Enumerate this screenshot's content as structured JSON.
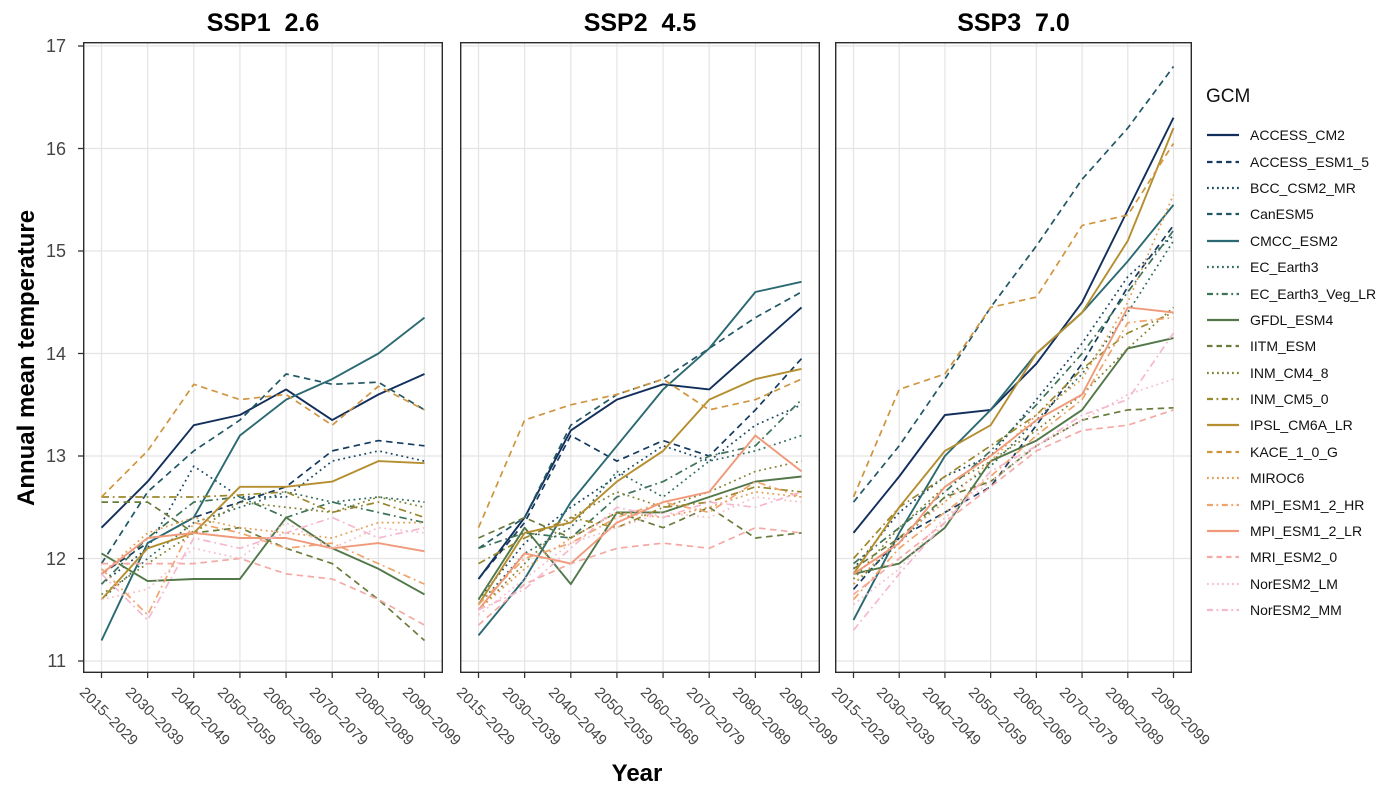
{
  "chart_data": {
    "type": "line",
    "faceted": true,
    "xlabel": "Year",
    "ylabel": "Annual mean temperature",
    "legend_title": "GCM",
    "ylim": [
      11,
      17
    ],
    "yticks": [
      11,
      12,
      13,
      14,
      15,
      16,
      17
    ],
    "grid": "major-only",
    "legend_position": "right",
    "x_categories": [
      "2015–2029",
      "2030–2039",
      "2040–2049",
      "2050–2059",
      "2060–2069",
      "2070–2079",
      "2080–2089",
      "2090–2099"
    ],
    "gcms": [
      {
        "name": "ACCESS_CM2",
        "color": "#122F5C",
        "linetype": "solid"
      },
      {
        "name": "ACCESS_ESM1_5",
        "color": "#153A60",
        "linetype": "dashed"
      },
      {
        "name": "BCC_CSM2_MR",
        "color": "#1A4764",
        "linetype": "dotted"
      },
      {
        "name": "CanESM5",
        "color": "#215765",
        "linetype": "dashed"
      },
      {
        "name": "CMCC_ESM2",
        "color": "#2B6A72",
        "linetype": "solid"
      },
      {
        "name": "EC_Earth3",
        "color": "#2F6B60",
        "linetype": "dotted"
      },
      {
        "name": "EC_Earth3_Veg_LR",
        "color": "#3D7358",
        "linetype": "dashdot"
      },
      {
        "name": "GFDL_ESM4",
        "color": "#527849",
        "linetype": "solid"
      },
      {
        "name": "IITM_ESM",
        "color": "#697C3B",
        "linetype": "dashed"
      },
      {
        "name": "INM_CM4_8",
        "color": "#828233",
        "linetype": "dotted"
      },
      {
        "name": "INM_CM5_0",
        "color": "#9B872C",
        "linetype": "dashdot"
      },
      {
        "name": "IPSL_CM6A_LR",
        "color": "#B48E2F",
        "linetype": "solid"
      },
      {
        "name": "KACE_1_0_G",
        "color": "#D0953F",
        "linetype": "dashed"
      },
      {
        "name": "MIROC6",
        "color": "#E49D52",
        "linetype": "dotted"
      },
      {
        "name": "MPI_ESM1_2_HR",
        "color": "#F0A46C",
        "linetype": "dashdot"
      },
      {
        "name": "MPI_ESM1_2_LR",
        "color": "#F09A7B",
        "linetype": "solid"
      },
      {
        "name": "MRI_ESM2_0",
        "color": "#F4A9A4",
        "linetype": "dashed"
      },
      {
        "name": "NorESM2_LM",
        "color": "#F8C0C8",
        "linetype": "dotted"
      },
      {
        "name": "NorESM2_MM",
        "color": "#F5B8CF",
        "linetype": "dashdot"
      }
    ],
    "panels": [
      {
        "title": "SSP1  2.6",
        "values": [
          [
            12.3,
            12.75,
            13.3,
            13.4,
            13.65,
            13.35,
            13.6,
            13.8
          ],
          [
            11.85,
            12.15,
            12.4,
            12.55,
            12.7,
            13.05,
            13.15,
            13.1
          ],
          [
            11.75,
            12.1,
            12.9,
            12.6,
            12.6,
            12.95,
            13.05,
            12.95
          ],
          [
            11.95,
            12.65,
            13.05,
            13.35,
            13.8,
            13.7,
            13.72,
            13.45
          ],
          [
            11.2,
            12.15,
            12.4,
            13.2,
            13.55,
            13.75,
            14.0,
            14.35
          ],
          [
            11.6,
            12.0,
            12.35,
            12.5,
            12.65,
            12.55,
            12.6,
            12.55
          ],
          [
            11.75,
            12.2,
            12.55,
            12.6,
            12.4,
            12.55,
            12.45,
            12.35
          ],
          [
            12.05,
            11.78,
            11.8,
            11.8,
            12.4,
            12.1,
            11.9,
            11.65
          ],
          [
            12.55,
            12.55,
            12.25,
            12.3,
            12.1,
            11.95,
            11.6,
            11.2
          ],
          [
            11.65,
            11.95,
            12.25,
            12.55,
            12.5,
            12.45,
            12.6,
            12.5
          ],
          [
            12.6,
            12.6,
            12.6,
            12.62,
            12.65,
            12.45,
            12.55,
            12.4
          ],
          [
            11.6,
            12.1,
            12.25,
            12.7,
            12.7,
            12.75,
            12.95,
            12.93
          ],
          [
            12.6,
            13.05,
            13.7,
            13.55,
            13.6,
            13.3,
            13.68,
            13.45
          ],
          [
            11.85,
            12.25,
            12.4,
            12.3,
            12.25,
            12.2,
            12.35,
            12.35
          ],
          [
            11.9,
            11.45,
            12.35,
            12.25,
            12.1,
            12.15,
            11.95,
            11.75
          ],
          [
            11.85,
            12.2,
            12.25,
            12.2,
            12.2,
            12.1,
            12.15,
            12.07
          ],
          [
            11.95,
            11.95,
            11.95,
            12.0,
            11.85,
            11.8,
            11.6,
            11.35
          ],
          [
            11.6,
            11.7,
            12.1,
            12.0,
            12.35,
            12.1,
            12.3,
            12.25
          ],
          [
            11.85,
            11.4,
            12.2,
            12.1,
            12.25,
            12.4,
            12.2,
            12.3
          ]
        ]
      },
      {
        "title": "SSP2  4.5",
        "values": [
          [
            11.8,
            12.4,
            13.25,
            13.55,
            13.7,
            13.65,
            14.05,
            14.45
          ],
          [
            11.8,
            12.35,
            13.2,
            12.95,
            13.15,
            13.0,
            13.45,
            13.95
          ],
          [
            11.6,
            12.15,
            12.5,
            12.8,
            13.1,
            12.95,
            13.3,
            13.5
          ],
          [
            12.1,
            12.4,
            13.3,
            13.6,
            13.75,
            14.05,
            14.35,
            14.6
          ],
          [
            11.25,
            11.8,
            12.55,
            13.1,
            13.65,
            14.05,
            14.6,
            14.7
          ],
          [
            11.55,
            12.05,
            12.3,
            12.85,
            12.6,
            12.95,
            13.05,
            13.2
          ],
          [
            12.1,
            12.25,
            12.2,
            12.6,
            12.75,
            13.0,
            13.1,
            13.55
          ],
          [
            11.6,
            12.3,
            11.75,
            12.45,
            12.45,
            12.6,
            12.75,
            12.8
          ],
          [
            12.2,
            12.4,
            12.2,
            12.45,
            12.3,
            12.5,
            12.2,
            12.25
          ],
          [
            11.5,
            11.95,
            12.4,
            12.65,
            12.5,
            12.65,
            12.85,
            12.95
          ],
          [
            11.95,
            12.2,
            12.4,
            12.3,
            12.5,
            12.55,
            12.7,
            12.65
          ],
          [
            11.55,
            12.25,
            12.35,
            12.75,
            13.05,
            13.55,
            13.75,
            13.85
          ],
          [
            12.3,
            13.35,
            13.5,
            13.6,
            13.75,
            13.45,
            13.55,
            13.75
          ],
          [
            11.5,
            11.9,
            12.2,
            12.45,
            12.4,
            12.5,
            12.65,
            12.6
          ],
          [
            11.55,
            12.0,
            12.15,
            12.4,
            12.55,
            12.45,
            12.75,
            12.6
          ],
          [
            11.5,
            12.05,
            11.95,
            12.35,
            12.55,
            12.65,
            13.2,
            12.85
          ],
          [
            11.35,
            11.75,
            11.95,
            12.1,
            12.15,
            12.1,
            12.3,
            12.25
          ],
          [
            11.45,
            11.8,
            12.15,
            12.3,
            12.45,
            12.4,
            12.6,
            12.55
          ],
          [
            11.5,
            11.7,
            12.1,
            12.5,
            12.4,
            12.55,
            12.5,
            12.65
          ]
        ]
      },
      {
        "title": "SSP3  7.0",
        "values": [
          [
            12.25,
            12.8,
            13.4,
            13.45,
            13.9,
            14.5,
            15.4,
            16.3
          ],
          [
            11.7,
            12.2,
            12.45,
            12.7,
            13.3,
            13.9,
            14.65,
            15.25
          ],
          [
            11.9,
            12.45,
            12.8,
            13.0,
            13.55,
            14.1,
            14.75,
            15.15
          ],
          [
            12.55,
            13.1,
            13.75,
            14.45,
            15.05,
            15.7,
            16.2,
            16.8
          ],
          [
            11.4,
            12.25,
            13.0,
            13.45,
            14.0,
            14.4,
            14.9,
            15.45
          ],
          [
            11.75,
            12.15,
            12.6,
            12.9,
            13.35,
            13.8,
            14.4,
            15.1
          ],
          [
            11.95,
            12.3,
            12.65,
            13.05,
            13.5,
            14.0,
            14.6,
            15.2
          ],
          [
            11.85,
            11.95,
            12.3,
            12.95,
            13.15,
            13.45,
            14.05,
            14.15
          ],
          [
            11.9,
            12.2,
            12.6,
            12.75,
            13.1,
            13.35,
            13.45,
            13.47
          ],
          [
            11.8,
            12.3,
            12.7,
            12.95,
            13.25,
            13.6,
            14.05,
            14.45
          ],
          [
            12.0,
            12.5,
            12.8,
            13.1,
            13.4,
            13.85,
            14.2,
            14.4
          ],
          [
            11.85,
            12.5,
            13.05,
            13.3,
            14.0,
            14.4,
            15.1,
            16.2
          ],
          [
            12.6,
            13.65,
            13.8,
            14.45,
            14.55,
            15.25,
            15.35,
            16.05
          ],
          [
            11.75,
            12.2,
            12.55,
            12.95,
            13.4,
            13.75,
            14.5,
            15.55
          ],
          [
            11.6,
            12.1,
            12.45,
            12.8,
            13.2,
            13.55,
            14.3,
            14.35
          ],
          [
            11.85,
            12.15,
            12.7,
            13.0,
            13.35,
            13.6,
            14.45,
            14.4
          ],
          [
            11.65,
            12.0,
            12.35,
            12.7,
            13.05,
            13.25,
            13.3,
            13.45
          ],
          [
            11.55,
            11.9,
            12.4,
            12.75,
            13.1,
            13.35,
            13.6,
            13.75
          ],
          [
            11.3,
            11.85,
            12.35,
            12.85,
            13.1,
            13.4,
            13.55,
            14.2
          ]
        ]
      }
    ],
    "style": {
      "grid_color": "#E4E4E4",
      "border_color": "#2B2B2B",
      "tick_color": "#333333",
      "tick_label_color": "#454545",
      "background": "#FFFFFF"
    }
  }
}
